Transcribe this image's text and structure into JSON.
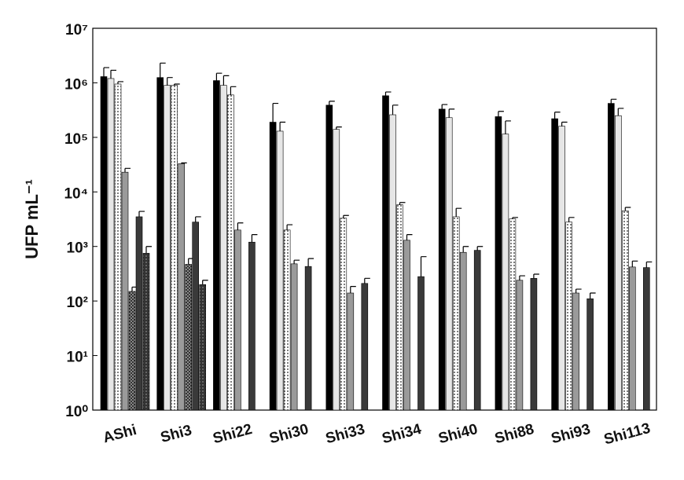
{
  "chart_data": {
    "type": "bar",
    "y_label": "UFP mL⁻¹",
    "log_scale": true,
    "categories": [
      "AShi",
      "Shi3",
      "Shi22",
      "Shi30",
      "Shi33",
      "Shi34",
      "Shi40",
      "Shi88",
      "Shi93",
      "Shi113"
    ],
    "ylim": [
      1,
      10000000
    ],
    "yticks": [
      {
        "value": 1,
        "label": "10⁰"
      },
      {
        "value": 10,
        "label": "10¹"
      },
      {
        "value": 100,
        "label": "10²"
      },
      {
        "value": 1000,
        "label": "10³"
      },
      {
        "value": 10000,
        "label": "10⁴"
      },
      {
        "value": 100000,
        "label": "10⁵"
      },
      {
        "value": 1000000,
        "label": "10⁶"
      },
      {
        "value": 10000000,
        "label": "10⁷"
      }
    ],
    "series": [
      {
        "color": "#000000",
        "pattern": "solid",
        "values": [
          1300000,
          1250000,
          1100000,
          190000,
          390000,
          580000,
          330000,
          240000,
          220000,
          420000
        ],
        "errors": [
          600000,
          1050000,
          400000,
          230000,
          70000,
          100000,
          70000,
          60000,
          70000,
          80000
        ]
      },
      {
        "color": "#e6e6e6",
        "pattern": "solid",
        "values": [
          1200000,
          900000,
          900000,
          130000,
          140000,
          260000,
          230000,
          115000,
          160000,
          250000
        ],
        "errors": [
          500000,
          350000,
          450000,
          60000,
          15000,
          130000,
          100000,
          85000,
          30000,
          90000
        ]
      },
      {
        "color": "#555555",
        "pattern": "dots",
        "values": [
          950000,
          900000,
          600000,
          2000,
          3300,
          5800,
          3500,
          3200,
          2800,
          4500
        ],
        "errors": [
          100000,
          50000,
          250000,
          500,
          400,
          600,
          1500,
          200,
          600,
          700
        ]
      },
      {
        "color": "#9a9a9a",
        "pattern": "solid",
        "values": [
          23000,
          33000,
          2000,
          480,
          140,
          1300,
          780,
          240,
          140,
          420
        ],
        "errors": [
          4000,
          1000,
          700,
          80,
          45,
          350,
          220,
          50,
          25,
          120
        ]
      },
      {
        "color": "#555555",
        "pattern": "checker",
        "values": [
          150,
          470,
          null,
          null,
          null,
          null,
          null,
          null,
          null,
          null
        ],
        "errors": [
          30,
          130,
          null,
          null,
          null,
          null,
          null,
          null,
          null,
          null
        ]
      },
      {
        "color": "#3a3a3a",
        "pattern": "solid",
        "values": [
          3500,
          2800,
          1200,
          430,
          210,
          280,
          850,
          260,
          110,
          410
        ],
        "errors": [
          900,
          700,
          450,
          170,
          50,
          370,
          150,
          50,
          30,
          110
        ]
      },
      {
        "color": "#444444",
        "pattern": "darkdots",
        "values": [
          750,
          200,
          null,
          null,
          null,
          null,
          null,
          null,
          null,
          null
        ],
        "errors": [
          250,
          40,
          null,
          null,
          null,
          null,
          null,
          null,
          null,
          null
        ]
      }
    ]
  }
}
